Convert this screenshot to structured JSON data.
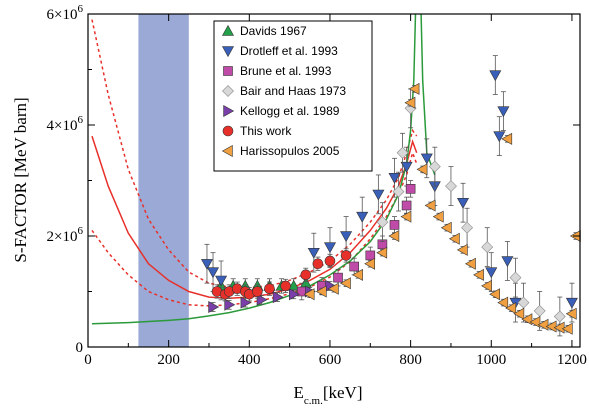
{
  "chart_data": {
    "type": "scatter",
    "xlabel_main": "E",
    "xlabel_sub": "c.m.",
    "xlabel_unit": "[keV]",
    "ylabel": "S-FACTOR [MeV barn]",
    "xlim": [
      0,
      1220
    ],
    "ylim": [
      0,
      6000000
    ],
    "x_ticks": [
      0,
      200,
      400,
      600,
      800,
      1000,
      1200
    ],
    "y_ticks": [
      {
        "value": 0,
        "mantissa": "0",
        "exp": ""
      },
      {
        "value": 2000000,
        "mantissa": "2×10",
        "exp": "6"
      },
      {
        "value": 4000000,
        "mantissa": "4×10",
        "exp": "6"
      },
      {
        "value": 6000000,
        "mantissa": "6×10",
        "exp": "6"
      }
    ],
    "shaded_band": {
      "x": [
        125,
        250
      ],
      "color": "#8fa0d0"
    },
    "legend": [
      {
        "label": "Davids 1967",
        "marker": "triangle-up",
        "color": "#22a04a"
      },
      {
        "label": "Drotleff et al. 1993",
        "marker": "triangle-down",
        "color": "#3a5fb8"
      },
      {
        "label": "Brune et al. 1993",
        "marker": "square",
        "color": "#c04aa8"
      },
      {
        "label": "Bair and Haas 1973",
        "marker": "diamond",
        "color": "#d8d8d8"
      },
      {
        "label": "Kellogg et al. 1989",
        "marker": "triangle-right",
        "color": "#7a3fa8"
      },
      {
        "label": "This work",
        "marker": "circle",
        "color": "#e8302a"
      },
      {
        "label": "Harissopulos 2005",
        "marker": "triangle-left",
        "color": "#f0a040"
      }
    ],
    "series": [
      {
        "name": "Davids 1967",
        "marker": "triangle-up",
        "color": "#22a04a",
        "points": [
          [
            330,
            1100000
          ],
          [
            360,
            1100000
          ],
          [
            390,
            1100000
          ],
          [
            420,
            1100000
          ],
          [
            450,
            1100000
          ],
          [
            480,
            1100000
          ],
          [
            510,
            1100000
          ],
          [
            540,
            1150000
          ]
        ],
        "err": 130000
      },
      {
        "name": "Drotleff et al. 1993",
        "marker": "triangle-down",
        "color": "#3a5fb8",
        "points": [
          [
            295,
            1500000
          ],
          [
            310,
            1350000
          ],
          [
            330,
            1200000
          ],
          [
            560,
            1700000
          ],
          [
            600,
            1800000
          ],
          [
            640,
            2000000
          ],
          [
            680,
            2350000
          ],
          [
            720,
            2750000
          ],
          [
            760,
            3050000
          ],
          [
            790,
            3250000
          ],
          [
            840,
            3400000
          ],
          [
            860,
            2900000
          ],
          [
            930,
            2600000
          ],
          [
            1000,
            1350000
          ],
          [
            1010,
            4900000
          ],
          [
            1020,
            3800000
          ],
          [
            1030,
            4250000
          ],
          [
            1040,
            1550000
          ],
          [
            1060,
            800000
          ],
          [
            1200,
            800000
          ]
        ],
        "err": 350000
      },
      {
        "name": "Brune et al. 1993",
        "marker": "square",
        "color": "#c04aa8",
        "points": [
          [
            530,
            1000000
          ],
          [
            580,
            1100000
          ],
          [
            620,
            1250000
          ],
          [
            660,
            1450000
          ],
          [
            700,
            1650000
          ],
          [
            730,
            1850000
          ],
          [
            760,
            2200000
          ],
          [
            790,
            2550000
          ],
          [
            800,
            2850000
          ]
        ],
        "err": 150000
      },
      {
        "name": "Bair and Haas 1973",
        "marker": "diamond",
        "color": "#d8d8d8",
        "points": [
          [
            730,
            2250000
          ],
          [
            770,
            2800000
          ],
          [
            780,
            3500000
          ],
          [
            800,
            4300000
          ],
          [
            860,
            3250000
          ],
          [
            900,
            2900000
          ],
          [
            940,
            2150000
          ],
          [
            990,
            1800000
          ],
          [
            1060,
            1250000
          ],
          [
            1080,
            800000
          ],
          [
            1120,
            650000
          ],
          [
            1170,
            550000
          ]
        ],
        "err": 350000
      },
      {
        "name": "Kellogg et al. 1989",
        "marker": "triangle-right",
        "color": "#7a3fa8",
        "points": [
          [
            310,
            720000
          ],
          [
            350,
            760000
          ],
          [
            390,
            800000
          ],
          [
            430,
            850000
          ],
          [
            470,
            900000
          ],
          [
            510,
            950000
          ],
          [
            550,
            1000000
          ],
          [
            600,
            1100000
          ]
        ],
        "err": 80000
      },
      {
        "name": "This work",
        "marker": "circle",
        "color": "#e8302a",
        "points": [
          [
            320,
            1000000
          ],
          [
            340,
            950000
          ],
          [
            350,
            1000000
          ],
          [
            370,
            1050000
          ],
          [
            390,
            1000000
          ],
          [
            400,
            950000
          ],
          [
            420,
            1000000
          ],
          [
            450,
            1050000
          ],
          [
            490,
            1100000
          ],
          [
            540,
            1300000
          ],
          [
            570,
            1500000
          ],
          [
            600,
            1550000
          ],
          [
            640,
            1650000
          ]
        ],
        "err": 120000
      },
      {
        "name": "Harissopulos 2005",
        "marker": "triangle-left",
        "color": "#f0a040",
        "points": [
          [
            550,
            950000
          ],
          [
            580,
            1000000
          ],
          [
            610,
            1050000
          ],
          [
            640,
            1150000
          ],
          [
            670,
            1300000
          ],
          [
            700,
            1500000
          ],
          [
            730,
            1700000
          ],
          [
            760,
            2000000
          ],
          [
            790,
            2350000
          ],
          [
            800,
            4400000
          ],
          [
            810,
            4650000
          ],
          [
            830,
            3200000
          ],
          [
            850,
            2550000
          ],
          [
            870,
            2350000
          ],
          [
            890,
            2150000
          ],
          [
            910,
            1950000
          ],
          [
            930,
            1750000
          ],
          [
            950,
            1500000
          ],
          [
            970,
            1300000
          ],
          [
            990,
            1100000
          ],
          [
            1010,
            950000
          ],
          [
            1030,
            800000
          ],
          [
            1050,
            700000
          ],
          [
            1070,
            600000
          ],
          [
            1090,
            500000
          ],
          [
            1110,
            450000
          ],
          [
            1130,
            400000
          ],
          [
            1150,
            370000
          ],
          [
            1170,
            350000
          ],
          [
            1190,
            330000
          ],
          [
            1200,
            600000
          ],
          [
            1210,
            2000000
          ],
          [
            1040,
            3750000
          ]
        ],
        "err": 60000
      }
    ],
    "curves": [
      {
        "style": "solid",
        "color": "#e8302a",
        "points": [
          [
            10,
            3800000
          ],
          [
            50,
            2900000
          ],
          [
            100,
            2050000
          ],
          [
            150,
            1500000
          ],
          [
            200,
            1200000
          ],
          [
            250,
            1000000
          ],
          [
            300,
            900000
          ],
          [
            350,
            880000
          ],
          [
            400,
            900000
          ],
          [
            450,
            950000
          ],
          [
            500,
            1050000
          ],
          [
            550,
            1200000
          ],
          [
            600,
            1400000
          ],
          [
            650,
            1700000
          ],
          [
            700,
            2100000
          ],
          [
            740,
            2500000
          ],
          [
            770,
            2900000
          ],
          [
            790,
            3300000
          ],
          [
            805,
            3700000
          ],
          [
            815,
            3500000
          ]
        ]
      },
      {
        "style": "dotted",
        "color": "#e8302a",
        "points": [
          [
            10,
            5900000
          ],
          [
            50,
            4550000
          ],
          [
            100,
            3200000
          ],
          [
            150,
            2300000
          ],
          [
            200,
            1750000
          ],
          [
            250,
            1350000
          ],
          [
            300,
            1150000
          ],
          [
            350,
            1080000
          ],
          [
            400,
            1070000
          ],
          [
            450,
            1100000
          ],
          [
            500,
            1200000
          ],
          [
            550,
            1350000
          ],
          [
            600,
            1550000
          ],
          [
            650,
            1850000
          ],
          [
            700,
            2250000
          ],
          [
            740,
            2650000
          ],
          [
            770,
            3050000
          ],
          [
            790,
            3500000
          ],
          [
            805,
            3900000
          ],
          [
            815,
            3800000
          ]
        ]
      },
      {
        "style": "dotted",
        "color": "#e8302a",
        "points": [
          [
            10,
            2100000
          ],
          [
            50,
            1700000
          ],
          [
            100,
            1300000
          ],
          [
            150,
            1000000
          ],
          [
            200,
            850000
          ],
          [
            250,
            760000
          ],
          [
            300,
            740000
          ],
          [
            350,
            760000
          ],
          [
            400,
            800000
          ],
          [
            450,
            870000
          ],
          [
            500,
            960000
          ],
          [
            550,
            1080000
          ],
          [
            600,
            1260000
          ],
          [
            650,
            1540000
          ],
          [
            700,
            1950000
          ],
          [
            740,
            2350000
          ],
          [
            770,
            2750000
          ],
          [
            790,
            3100000
          ],
          [
            805,
            3500000
          ],
          [
            815,
            3300000
          ]
        ]
      },
      {
        "style": "solid",
        "color": "#2a9a3a",
        "points": [
          [
            10,
            420000
          ],
          [
            100,
            440000
          ],
          [
            200,
            480000
          ],
          [
            250,
            510000
          ],
          [
            300,
            560000
          ],
          [
            350,
            620000
          ],
          [
            400,
            700000
          ],
          [
            450,
            800000
          ],
          [
            500,
            930000
          ],
          [
            550,
            1100000
          ],
          [
            600,
            1300000
          ],
          [
            650,
            1550000
          ],
          [
            700,
            1900000
          ],
          [
            740,
            2300000
          ],
          [
            770,
            2750000
          ],
          [
            790,
            3300000
          ],
          [
            800,
            3900000
          ],
          [
            808,
            4800000
          ],
          [
            812,
            6000000
          ]
        ]
      },
      {
        "style": "solid",
        "color": "#2a9a3a",
        "points": [
          [
            826,
            6000000
          ],
          [
            830,
            4800000
          ],
          [
            840,
            3500000
          ],
          [
            860,
            3100000
          ]
        ]
      }
    ]
  }
}
